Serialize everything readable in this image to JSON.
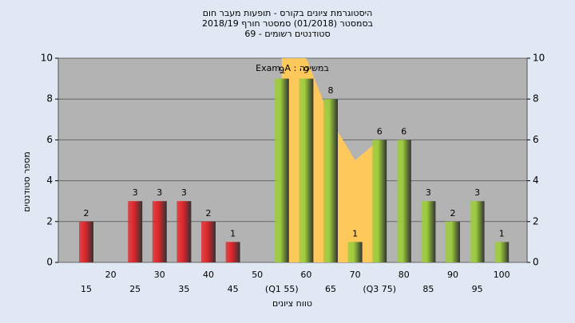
{
  "chart_data": {
    "type": "bar",
    "title": [
      "היסטוגרמת ציונים בקורס - תופעות מעבר חום",
      "בסמסטר (01/2018) סמסטר חורף 2018/19",
      "סטודנטים רשומים - 69"
    ],
    "annotation": "במשיכה : Exam_A",
    "x_label": "טווח ציונים",
    "y_label": "מספר סטודנטים",
    "categories": [
      "15",
      "20",
      "25",
      "30",
      "35",
      "40",
      "45",
      "50",
      "(Q1 55)",
      "60",
      "65",
      "70",
      "(Q3 75)",
      "80",
      "85",
      "90",
      "95",
      "100"
    ],
    "values": [
      2,
      0,
      3,
      3,
      3,
      2,
      1,
      0,
      9,
      9,
      8,
      1,
      6,
      6,
      3,
      2,
      3,
      1
    ],
    "colors": [
      "#e3262b",
      "#e3262b",
      "#e3262b",
      "#e3262b",
      "#e3262b",
      "#e3262b",
      "#e3262b",
      "#e3262b",
      "#9ccc3c",
      "#9ccc3c",
      "#9ccc3c",
      "#9ccc3c",
      "#9ccc3c",
      "#9ccc3c",
      "#9ccc3c",
      "#9ccc3c",
      "#9ccc3c",
      "#9ccc3c"
    ],
    "band": {
      "color": "#ffc85a",
      "values": [
        null,
        null,
        null,
        null,
        null,
        null,
        null,
        null,
        10,
        10,
        7,
        5,
        6,
        null,
        null,
        null,
        null,
        null
      ]
    },
    "ylim": [
      0,
      10
    ],
    "yticks": [
      0,
      2,
      4,
      6,
      8,
      10
    ],
    "y2lim": [
      0,
      10
    ],
    "y2ticks": [
      0,
      2,
      4,
      6,
      8,
      10
    ],
    "grid": true
  }
}
